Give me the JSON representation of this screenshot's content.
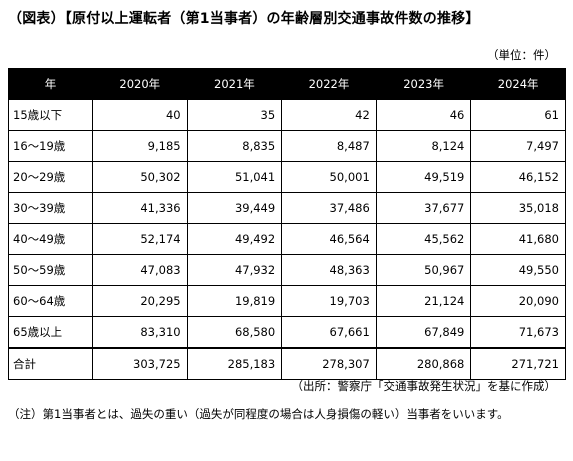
{
  "title": "（図表）【原付以上運転者（第1当事者）の年齢層別交通事故件数の推移】",
  "unit": "（単位：件）",
  "table": {
    "headers": [
      "年",
      "2020年",
      "2021年",
      "2022年",
      "2023年",
      "2024年"
    ],
    "rows": [
      {
        "label": "15歳以下",
        "values": [
          "40",
          "35",
          "42",
          "46",
          "61"
        ]
      },
      {
        "label": "16～19歳",
        "values": [
          "9,185",
          "8,835",
          "8,487",
          "8,124",
          "7,497"
        ]
      },
      {
        "label": "20～29歳",
        "values": [
          "50,302",
          "51,041",
          "50,001",
          "49,519",
          "46,152"
        ]
      },
      {
        "label": "30～39歳",
        "values": [
          "41,336",
          "39,449",
          "37,486",
          "37,677",
          "35,018"
        ]
      },
      {
        "label": "40～49歳",
        "values": [
          "52,174",
          "49,492",
          "46,564",
          "45,562",
          "41,680"
        ]
      },
      {
        "label": "50～59歳",
        "values": [
          "47,083",
          "47,932",
          "48,363",
          "50,967",
          "49,550"
        ]
      },
      {
        "label": "60～64歳",
        "values": [
          "20,295",
          "19,819",
          "19,703",
          "21,124",
          "20,090"
        ]
      },
      {
        "label": "65歳以上",
        "values": [
          "83,310",
          "68,580",
          "67,661",
          "67,849",
          "71,673"
        ]
      }
    ],
    "total": {
      "label": "合計",
      "values": [
        "303,725",
        "285,183",
        "278,307",
        "280,868",
        "271,721"
      ]
    }
  },
  "source": "（出所：警察庁「交通事故発生状況」を基に作成）",
  "note": "（注）第1当事者とは、過失の重い（過失が同程度の場合は人身損傷の軽い）当事者をいいます。"
}
